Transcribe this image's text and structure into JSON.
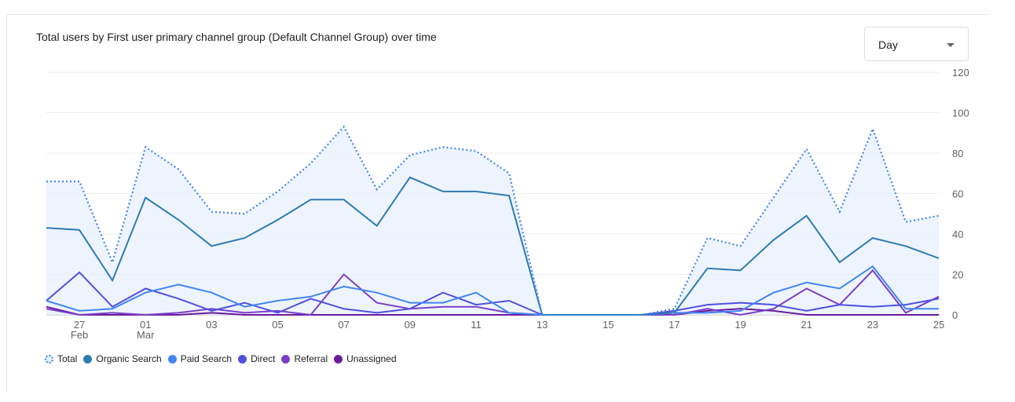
{
  "dropdown": {
    "value": "Day"
  },
  "chart_data": {
    "type": "line",
    "title": "Total users by First user primary channel group (Default Channel Group) over time",
    "xlabel": "",
    "ylabel": "",
    "ylim": [
      0,
      120
    ],
    "yticks": [
      "120",
      "100",
      "80",
      "60",
      "40",
      "20",
      "0"
    ],
    "grid": true,
    "legend_position": "bottom-left",
    "x": [
      "Feb 26",
      "Feb 27",
      "Feb 28",
      "Mar 01",
      "Mar 02",
      "Mar 03",
      "Mar 04",
      "Mar 05",
      "Mar 06",
      "Mar 07",
      "Mar 08",
      "Mar 09",
      "Mar 10",
      "Mar 11",
      "Mar 12",
      "Mar 13",
      "Mar 14",
      "Mar 15",
      "Mar 16",
      "Mar 17",
      "Mar 18",
      "Mar 19",
      "Mar 20",
      "Mar 21",
      "Mar 22",
      "Mar 23",
      "Mar 24",
      "Mar 25"
    ],
    "xtick_labels": [
      {
        "i": 1,
        "label": "27",
        "sub": "Feb"
      },
      {
        "i": 3,
        "label": "01",
        "sub": "Mar"
      },
      {
        "i": 5,
        "label": "03",
        "sub": ""
      },
      {
        "i": 7,
        "label": "05",
        "sub": ""
      },
      {
        "i": 9,
        "label": "07",
        "sub": ""
      },
      {
        "i": 11,
        "label": "09",
        "sub": ""
      },
      {
        "i": 13,
        "label": "11",
        "sub": ""
      },
      {
        "i": 15,
        "label": "13",
        "sub": ""
      },
      {
        "i": 17,
        "label": "15",
        "sub": ""
      },
      {
        "i": 19,
        "label": "17",
        "sub": ""
      },
      {
        "i": 21,
        "label": "19",
        "sub": ""
      },
      {
        "i": 23,
        "label": "21",
        "sub": ""
      },
      {
        "i": 25,
        "label": "23",
        "sub": ""
      },
      {
        "i": 27,
        "label": "25",
        "sub": ""
      }
    ],
    "series": [
      {
        "name": "Total",
        "color": "#4285f4",
        "style": "dotted-area",
        "values": [
          66,
          66,
          26,
          83,
          72,
          51,
          50,
          61,
          75,
          93,
          62,
          79,
          83,
          81,
          70,
          0,
          0,
          0,
          0,
          3,
          38,
          34,
          58,
          82,
          51,
          92,
          46,
          49
        ]
      },
      {
        "name": "Organic Search",
        "color": "#2e7bb4",
        "values": [
          43,
          42,
          17,
          58,
          47,
          34,
          38,
          47,
          57,
          57,
          44,
          68,
          61,
          61,
          59,
          0,
          0,
          0,
          0,
          1,
          23,
          22,
          37,
          49,
          26,
          38,
          34,
          28
        ]
      },
      {
        "name": "Paid Search",
        "color": "#4285f4",
        "values": [
          7,
          2,
          3,
          11,
          15,
          11,
          4,
          7,
          9,
          14,
          11,
          6,
          6,
          11,
          1,
          0,
          0,
          0,
          0,
          1,
          1,
          2,
          11,
          16,
          13,
          24,
          3,
          3
        ]
      },
      {
        "name": "Direct",
        "color": "#5050e0",
        "values": [
          7,
          21,
          4,
          13,
          8,
          2,
          6,
          1,
          8,
          3,
          1,
          3,
          11,
          5,
          7,
          0,
          0,
          0,
          0,
          2,
          5,
          6,
          5,
          2,
          5,
          4,
          5,
          8
        ]
      },
      {
        "name": "Referral",
        "color": "#7b3fc8",
        "values": [
          3,
          0,
          1,
          0,
          1,
          3,
          1,
          2,
          0,
          20,
          6,
          3,
          4,
          4,
          1,
          0,
          0,
          0,
          0,
          0,
          3,
          0,
          3,
          13,
          5,
          22,
          1,
          9
        ]
      },
      {
        "name": "Unassigned",
        "color": "#6a1b9a",
        "values": [
          4,
          0,
          0,
          0,
          0,
          1,
          0,
          0,
          0,
          0,
          0,
          0,
          0,
          0,
          0,
          0,
          0,
          0,
          0,
          0,
          2,
          3,
          2,
          0,
          0,
          0,
          0,
          0
        ]
      }
    ]
  }
}
